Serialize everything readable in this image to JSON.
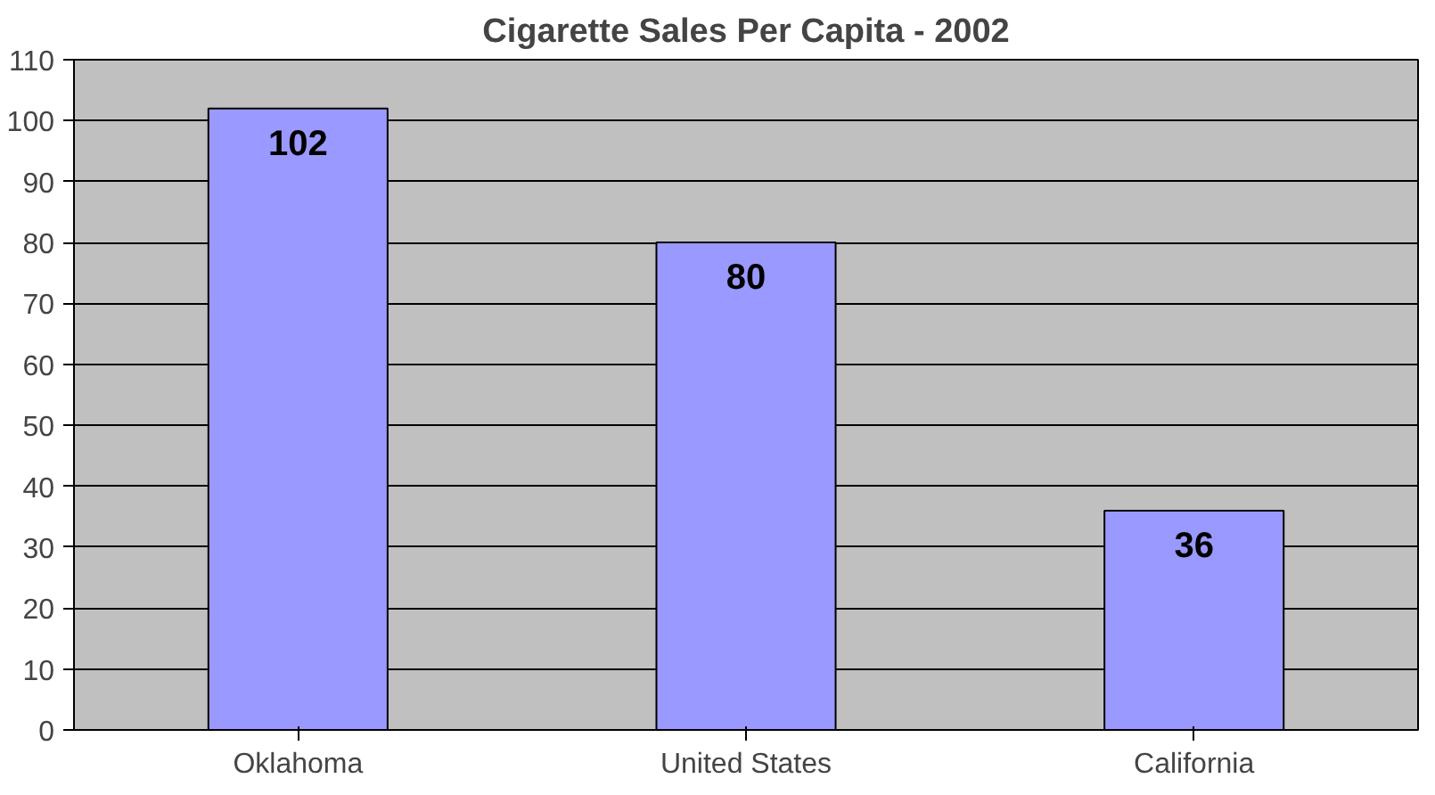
{
  "chart_data": {
    "type": "bar",
    "title": "Cigarette Sales Per Capita - 2002",
    "categories": [
      "Oklahoma",
      "United States",
      "California"
    ],
    "values": [
      102,
      80,
      36
    ],
    "color": "#9999ff",
    "ylim": [
      0,
      110
    ],
    "yticks": [
      0,
      10,
      20,
      30,
      40,
      50,
      60,
      70,
      80,
      90,
      100,
      110
    ],
    "grid": "y",
    "data_labels": true
  }
}
